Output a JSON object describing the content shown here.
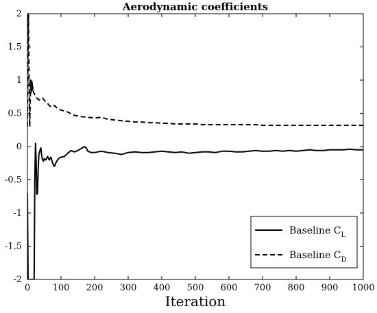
{
  "chart_data": {
    "type": "line",
    "title": "Aerodynamic coefficients",
    "xlabel": "Iteration",
    "ylabel": "",
    "xlim": [
      0,
      1000
    ],
    "ylim": [
      -2,
      2
    ],
    "xticks": [
      0,
      100,
      200,
      300,
      400,
      500,
      600,
      700,
      800,
      900,
      1000
    ],
    "yticks": [
      -2,
      -1.5,
      -1,
      -0.5,
      0,
      0.5,
      1,
      1.5,
      2
    ],
    "grid": false,
    "legend_position": "bottom-right",
    "series": [
      {
        "name": "Baseline C_L",
        "legend_main": "Baseline C",
        "legend_sub": "L",
        "style": "solid",
        "color": "#000000",
        "x": [
          0,
          2,
          4,
          6,
          8,
          10,
          12,
          14,
          16,
          18,
          20,
          22,
          24,
          26,
          28,
          30,
          32,
          34,
          36,
          38,
          40,
          42,
          45,
          48,
          50,
          55,
          60,
          65,
          70,
          75,
          80,
          85,
          90,
          95,
          100,
          110,
          120,
          130,
          140,
          150,
          160,
          170,
          175,
          180,
          190,
          200,
          220,
          240,
          260,
          280,
          300,
          320,
          340,
          360,
          380,
          400,
          420,
          440,
          460,
          480,
          500,
          520,
          540,
          560,
          580,
          600,
          620,
          640,
          660,
          680,
          700,
          720,
          740,
          760,
          780,
          800,
          820,
          840,
          860,
          880,
          900,
          920,
          940,
          960,
          980,
          1000
        ],
        "y": [
          -0.7,
          -2,
          -2,
          -2,
          -2,
          -2,
          -2,
          -2,
          -2,
          -2,
          -2,
          -0.5,
          0.05,
          -0.2,
          -0.72,
          -0.7,
          -0.35,
          -0.12,
          -0.08,
          -0.05,
          -0.02,
          -0.12,
          -0.2,
          -0.22,
          -0.18,
          -0.2,
          -0.15,
          -0.2,
          -0.16,
          -0.25,
          -0.3,
          -0.24,
          -0.2,
          -0.17,
          -0.16,
          -0.15,
          -0.1,
          -0.06,
          -0.08,
          -0.06,
          -0.03,
          0.0,
          -0.02,
          -0.07,
          -0.09,
          -0.09,
          -0.07,
          -0.09,
          -0.1,
          -0.12,
          -0.09,
          -0.08,
          -0.09,
          -0.09,
          -0.08,
          -0.07,
          -0.08,
          -0.09,
          -0.08,
          -0.1,
          -0.09,
          -0.08,
          -0.08,
          -0.09,
          -0.07,
          -0.07,
          -0.08,
          -0.08,
          -0.07,
          -0.06,
          -0.07,
          -0.07,
          -0.06,
          -0.07,
          -0.06,
          -0.07,
          -0.06,
          -0.05,
          -0.06,
          -0.06,
          -0.05,
          -0.05,
          -0.05,
          -0.04,
          -0.05,
          -0.05
        ]
      },
      {
        "name": "Baseline C_D",
        "legend_main": "Baseline C",
        "legend_sub": "D",
        "style": "dashed",
        "color": "#000000",
        "x": [
          0,
          1,
          2,
          3,
          4,
          5,
          6,
          7,
          8,
          9,
          10,
          11,
          12,
          13,
          14,
          15,
          16,
          18,
          20,
          22,
          25,
          30,
          35,
          40,
          45,
          50,
          55,
          60,
          65,
          70,
          75,
          80,
          90,
          100,
          120,
          140,
          160,
          180,
          200,
          220,
          240,
          260,
          280,
          300,
          320,
          340,
          360,
          380,
          400,
          420,
          440,
          460,
          480,
          500,
          520,
          540,
          560,
          580,
          600,
          620,
          640,
          660,
          680,
          700,
          720,
          740,
          760,
          780,
          800,
          820,
          840,
          860,
          880,
          900,
          920,
          940,
          960,
          980,
          1000
        ],
        "y": [
          0.3,
          1.2,
          1.7,
          2.0,
          1.5,
          0.9,
          0.6,
          0.3,
          0.6,
          0.8,
          1.0,
          0.8,
          0.9,
          1.0,
          0.95,
          0.85,
          0.9,
          0.82,
          0.8,
          0.78,
          0.75,
          0.72,
          0.7,
          0.72,
          0.73,
          0.7,
          0.67,
          0.65,
          0.62,
          0.6,
          0.6,
          0.62,
          0.57,
          0.55,
          0.52,
          0.47,
          0.45,
          0.44,
          0.43,
          0.44,
          0.41,
          0.4,
          0.39,
          0.38,
          0.37,
          0.37,
          0.36,
          0.36,
          0.35,
          0.35,
          0.34,
          0.34,
          0.34,
          0.34,
          0.33,
          0.33,
          0.33,
          0.33,
          0.33,
          0.33,
          0.33,
          0.33,
          0.33,
          0.32,
          0.32,
          0.32,
          0.32,
          0.32,
          0.32,
          0.32,
          0.32,
          0.32,
          0.32,
          0.32,
          0.32,
          0.32,
          0.32,
          0.32,
          0.32
        ]
      }
    ]
  }
}
